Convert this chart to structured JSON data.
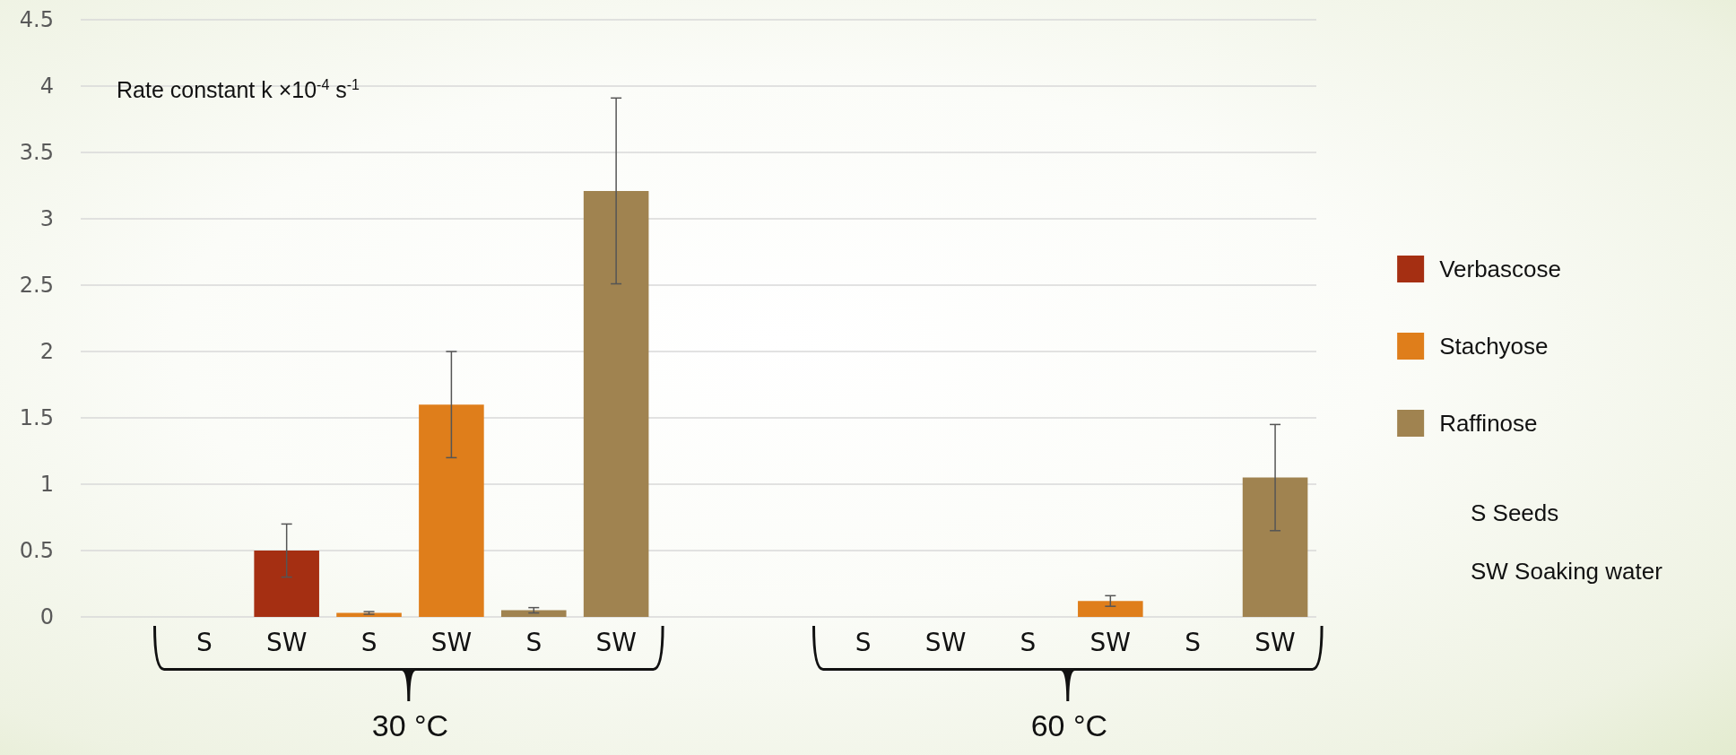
{
  "chart_data": {
    "type": "bar",
    "ylabel": "Rate constant k ×10$^{-4}$ s$^{-1}$",
    "categories": [
      null,
      "S",
      "SW",
      "S",
      "SW",
      "S",
      "SW",
      null,
      null,
      "S",
      "SW",
      "S",
      "SW",
      "S",
      "SW"
    ],
    "series": [
      {
        "name": "Verbascose",
        "color": "#a52f12",
        "values": [
          null,
          0,
          0.5,
          null,
          null,
          null,
          null,
          null,
          null,
          0,
          0,
          null,
          null,
          null,
          null
        ],
        "errors": [
          null,
          null,
          0.2,
          null,
          null,
          null,
          null,
          null,
          null,
          null,
          null,
          null,
          null,
          null,
          null
        ]
      },
      {
        "name": "Stachyose",
        "color": "#df7e1b",
        "values": [
          null,
          null,
          null,
          0.03,
          1.6,
          null,
          null,
          null,
          null,
          null,
          null,
          0,
          0.12,
          null,
          null
        ],
        "errors": [
          null,
          null,
          null,
          0.01,
          0.4,
          null,
          null,
          null,
          null,
          null,
          null,
          null,
          0.04,
          null,
          null
        ]
      },
      {
        "name": "Raffinose",
        "color": "#a08350",
        "values": [
          null,
          null,
          null,
          null,
          null,
          0.05,
          3.21,
          null,
          null,
          null,
          null,
          null,
          null,
          0,
          1.05
        ],
        "errors": [
          null,
          null,
          null,
          null,
          null,
          0.02,
          0.7,
          null,
          null,
          null,
          null,
          null,
          null,
          null,
          0.4
        ]
      }
    ],
    "ylim": [
      0,
      4.5
    ],
    "yticks": [
      0,
      0.5,
      1,
      1.5,
      2,
      2.5,
      3,
      3.5,
      4,
      4.5
    ],
    "grid": "y",
    "legend": "right",
    "annotations": [
      "30 °C",
      "60 °C",
      "S Seeds",
      "SW Soaking water"
    ]
  }
}
